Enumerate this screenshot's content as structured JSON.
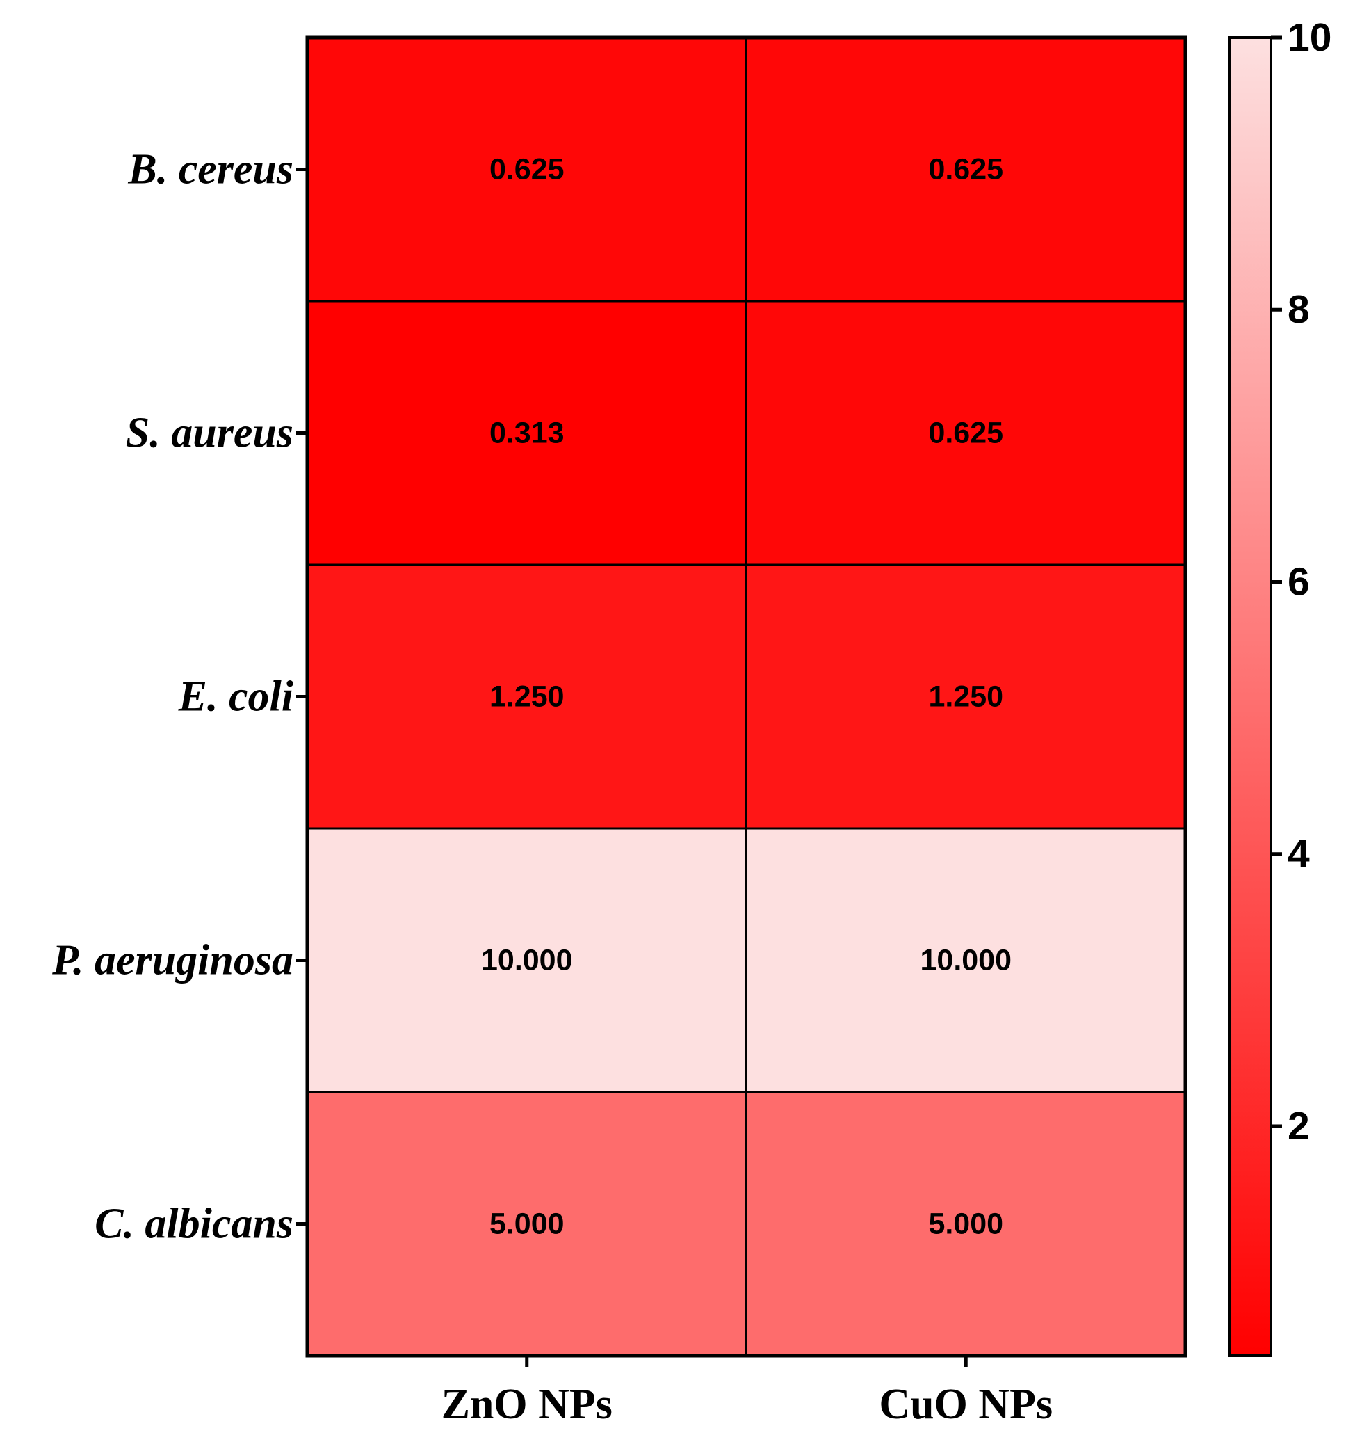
{
  "chart_data": {
    "type": "heatmap",
    "title": "",
    "xlabel": "",
    "ylabel": "",
    "rows": [
      "B. cereus",
      "S. aureus",
      "E. coli",
      "P. aeruginosa",
      "C. albicans"
    ],
    "columns": [
      "ZnO NPs",
      "CuO NPs"
    ],
    "values": [
      [
        0.625,
        0.625
      ],
      [
        0.313,
        0.625
      ],
      [
        1.25,
        1.25
      ],
      [
        10.0,
        10.0
      ],
      [
        5.0,
        5.0
      ]
    ],
    "cell_labels": [
      [
        "0.625",
        "0.625"
      ],
      [
        "0.313",
        "0.625"
      ],
      [
        "1.250",
        "1.250"
      ],
      [
        "10.000",
        "10.000"
      ],
      [
        "5.000",
        "5.000"
      ]
    ],
    "colorbar": {
      "range": [
        0.313,
        10
      ],
      "ticks": [
        2,
        4,
        6,
        8,
        10
      ],
      "tick_labels": [
        "2",
        "4",
        "6",
        "8",
        "10"
      ],
      "color_low": "#ff0000",
      "color_high": "#fde0e0"
    }
  }
}
